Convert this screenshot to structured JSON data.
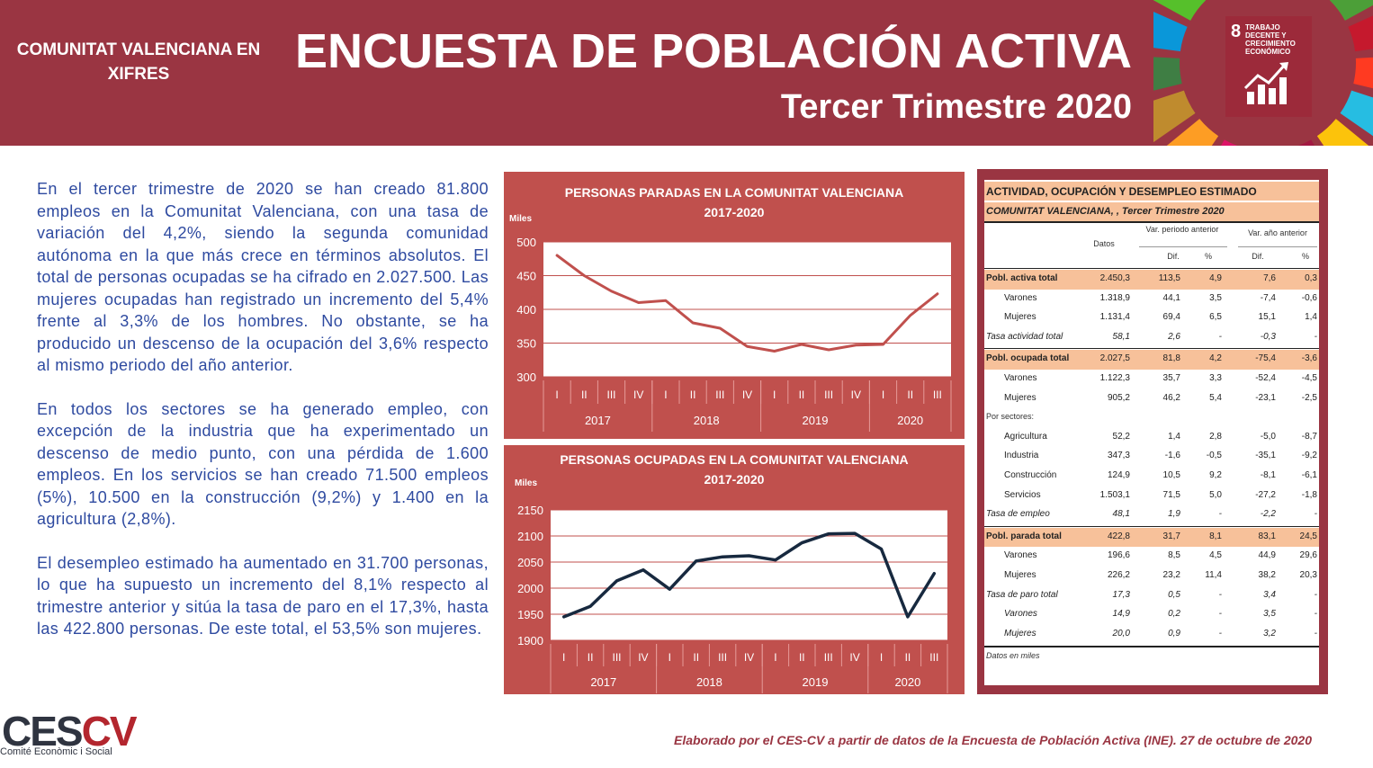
{
  "header": {
    "region": "COMUNITAT VALENCIANA EN XIFRES",
    "title": "ENCUESTA DE POBLACIÓN ACTIVA",
    "subtitle": "Tercer Trimestre 2020",
    "sdg_number": "8",
    "sdg_label": "TRABAJO DECENTE Y CRECIMIENTO ECONÓMICO"
  },
  "text": {
    "p1": "En el tercer trimestre de 2020 se han creado 81.800 empleos en la Comunitat Valenciana, con una tasa de variación del 4,2%, siendo la segunda comunidad autónoma en la que más crece en términos absolutos.  El total de personas ocupadas se ha cifrado en 2.027.500. Las mujeres ocupadas han registrado un incremento del 5,4% frente al 3,3% de los hombres. No obstante, se ha producido un descenso de la ocupación del 3,6% respecto al mismo periodo del año anterior.",
    "p2": "En todos los sectores se ha generado empleo, con excepción de la industria que ha experimentado un descenso de medio punto, con una pérdida de 1.600 empleos. En los servicios se han creado 71.500 empleos (5%), 10.500 en la construcción (9,2%) y 1.400 en la agricultura (2,8%).",
    "p3": "El desempleo estimado ha aumentado en 31.700 personas, lo que ha supuesto un incremento del 8,1% respecto al trimestre anterior y sitúa la tasa de paro en el 17,3%, hasta las 422.800 personas. De este total, el 53,5% son mujeres."
  },
  "chart_data": [
    {
      "type": "line",
      "title": "PERSONAS PARADAS EN LA COMUNITAT VALENCIANA 2017-2020",
      "ylabel": "Miles",
      "ylim": [
        300,
        500
      ],
      "yticks": [
        300,
        350,
        400,
        450,
        500
      ],
      "quarters": [
        "I",
        "II",
        "III",
        "IV",
        "I",
        "II",
        "III",
        "IV",
        "I",
        "II",
        "III",
        "IV",
        "I",
        "II",
        "III"
      ],
      "years": [
        "2017",
        "2018",
        "2019",
        "2020"
      ],
      "values": [
        480,
        450,
        427,
        410,
        413,
        380,
        372,
        345,
        338,
        348,
        340,
        347,
        348,
        391,
        423
      ],
      "line_color": "#c0504d",
      "grid": true
    },
    {
      "type": "line",
      "title": "PERSONAS OCUPADAS EN LA COMUNITAT VALENCIANA 2017-2020",
      "ylabel": "Miles",
      "ylim": [
        1900,
        2150
      ],
      "yticks": [
        1900,
        1950,
        2000,
        2050,
        2100,
        2150
      ],
      "quarters": [
        "I",
        "II",
        "III",
        "IV",
        "I",
        "II",
        "III",
        "IV",
        "I",
        "II",
        "III",
        "IV",
        "I",
        "II",
        "III"
      ],
      "years": [
        "2017",
        "2018",
        "2019",
        "2020"
      ],
      "values": [
        1945,
        1965,
        2014,
        2035,
        1998,
        2052,
        2060,
        2062,
        2054,
        2087,
        2104,
        2105,
        2075,
        1945,
        2028
      ],
      "line_color": "#17293f",
      "grid": true
    }
  ],
  "table": {
    "title": "ACTIVIDAD, OCUPACIÓN Y DESEMPLEO ESTIMADO",
    "subtitle": "COMUNITAT  VALENCIANA, , Tercer Trimestre 2020",
    "col_datos": "Datos",
    "col_var_ant": "Var. periodo anterior",
    "col_var_anio": "Var. año anterior",
    "col_dif": "Dif.",
    "col_pct": "%",
    "por_sectores": "Por sectores:",
    "footnote": "Datos en miles",
    "rows": [
      {
        "label": "Pobl. activa total",
        "datos": "2.450,3",
        "dif1": "113,5",
        "pct1": "4,9",
        "dif2": "7,6",
        "pct2": "0,3"
      },
      {
        "label": "Varones",
        "datos": "1.318,9",
        "dif1": "44,1",
        "pct1": "3,5",
        "dif2": "-7,4",
        "pct2": "-0,6"
      },
      {
        "label": "Mujeres",
        "datos": "1.131,4",
        "dif1": "69,4",
        "pct1": "6,5",
        "dif2": "15,1",
        "pct2": "1,4"
      },
      {
        "label": "Tasa actividad total",
        "datos": "58,1",
        "dif1": "2,6",
        "pct1": "-",
        "dif2": "-0,3",
        "pct2": "-"
      },
      {
        "label": "Pobl. ocupada total",
        "datos": "2.027,5",
        "dif1": "81,8",
        "pct1": "4,2",
        "dif2": "-75,4",
        "pct2": "-3,6"
      },
      {
        "label": "Varones",
        "datos": "1.122,3",
        "dif1": "35,7",
        "pct1": "3,3",
        "dif2": "-52,4",
        "pct2": "-4,5"
      },
      {
        "label": "Mujeres",
        "datos": "905,2",
        "dif1": "46,2",
        "pct1": "5,4",
        "dif2": "-23,1",
        "pct2": "-2,5"
      },
      {
        "label": "Agricultura",
        "datos": "52,2",
        "dif1": "1,4",
        "pct1": "2,8",
        "dif2": "-5,0",
        "pct2": "-8,7"
      },
      {
        "label": "Industria",
        "datos": "347,3",
        "dif1": "-1,6",
        "pct1": "-0,5",
        "dif2": "-35,1",
        "pct2": "-9,2"
      },
      {
        "label": "Construcción",
        "datos": "124,9",
        "dif1": "10,5",
        "pct1": "9,2",
        "dif2": "-8,1",
        "pct2": "-6,1"
      },
      {
        "label": "Servicios",
        "datos": "1.503,1",
        "dif1": "71,5",
        "pct1": "5,0",
        "dif2": "-27,2",
        "pct2": "-1,8"
      },
      {
        "label": "Tasa de empleo",
        "datos": "48,1",
        "dif1": "1,9",
        "pct1": "-",
        "dif2": "-2,2",
        "pct2": "-"
      },
      {
        "label": "Pobl. parada total",
        "datos": "422,8",
        "dif1": "31,7",
        "pct1": "8,1",
        "dif2": "83,1",
        "pct2": "24,5"
      },
      {
        "label": "Varones",
        "datos": "196,6",
        "dif1": "8,5",
        "pct1": "4,5",
        "dif2": "44,9",
        "pct2": "29,6"
      },
      {
        "label": "Mujeres",
        "datos": "226,2",
        "dif1": "23,2",
        "pct1": "11,4",
        "dif2": "38,2",
        "pct2": "20,3"
      },
      {
        "label": "Tasa de paro total",
        "datos": "17,3",
        "dif1": "0,5",
        "pct1": "-",
        "dif2": "3,4",
        "pct2": "-"
      },
      {
        "label": "Varones",
        "datos": "14,9",
        "dif1": "0,2",
        "pct1": "-",
        "dif2": "3,5",
        "pct2": "-"
      },
      {
        "label": "Mujeres",
        "datos": "20,0",
        "dif1": "0,9",
        "pct1": "-",
        "dif2": "3,2",
        "pct2": "-"
      }
    ]
  },
  "logo": {
    "ce": "CES",
    "cv": "CV",
    "sub": "Comité Econòmic i Social"
  },
  "footer": "Elaborado por el CES-CV a partir de datos de la Encuesta de Población Activa (INE). 27 de octubre de 2020",
  "colors": {
    "header_bg": "#9a3542",
    "chart_panel": "#c0504d",
    "table_highlight": "#f7c19a",
    "text_blue": "#2e4aa0"
  }
}
